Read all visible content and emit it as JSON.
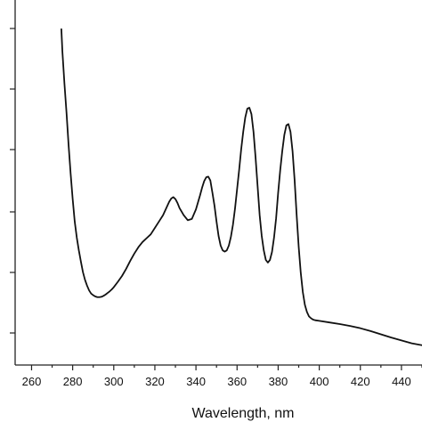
{
  "chart_data": {
    "type": "line",
    "title": "",
    "xlabel": "Wavelength, nm",
    "ylabel": "",
    "xlim": [
      252,
      450
    ],
    "ylim": [
      0,
      1
    ],
    "x_ticks": [
      260,
      280,
      300,
      320,
      340,
      360,
      380,
      400,
      420,
      440
    ],
    "grid": false,
    "legend": "none",
    "colors": {
      "line": "#111111",
      "axis": "#222222",
      "background": "#ffffff"
    },
    "series": [
      {
        "x": [
          274.5,
          275,
          276,
          277,
          278,
          279,
          280,
          281,
          282,
          283,
          284,
          285,
          286,
          287,
          288,
          289,
          290,
          291,
          292,
          293,
          294,
          295,
          296,
          297,
          298,
          299,
          300,
          302,
          304,
          306,
          308,
          310,
          312,
          314,
          316,
          318,
          320,
          322,
          324,
          326,
          327,
          328,
          329,
          330,
          331,
          332,
          334,
          336,
          338,
          340,
          342,
          343,
          344,
          345,
          346,
          347,
          348,
          349,
          350,
          351,
          352,
          353,
          354,
          355,
          356,
          357,
          358,
          359,
          360,
          361,
          362,
          363,
          364,
          365,
          366,
          367,
          368,
          369,
          370,
          371,
          372,
          373,
          374,
          375,
          376,
          377,
          378,
          379,
          380,
          381,
          382,
          383,
          384,
          385,
          386,
          387,
          388,
          389,
          390,
          391,
          392,
          393,
          394,
          395,
          396,
          397,
          398,
          400,
          405,
          410,
          415,
          420,
          425,
          430,
          435,
          440,
          445,
          450
        ],
        "y": [
          1.02,
          0.95,
          0.85,
          0.76,
          0.66,
          0.57,
          0.49,
          0.42,
          0.37,
          0.33,
          0.295,
          0.262,
          0.238,
          0.22,
          0.205,
          0.195,
          0.19,
          0.186,
          0.184,
          0.184,
          0.185,
          0.188,
          0.192,
          0.197,
          0.202,
          0.208,
          0.215,
          0.232,
          0.25,
          0.272,
          0.297,
          0.32,
          0.34,
          0.356,
          0.368,
          0.38,
          0.4,
          0.42,
          0.44,
          0.468,
          0.482,
          0.492,
          0.496,
          0.49,
          0.478,
          0.462,
          0.44,
          0.424,
          0.428,
          0.458,
          0.502,
          0.526,
          0.546,
          0.558,
          0.56,
          0.548,
          0.51,
          0.47,
          0.42,
          0.375,
          0.345,
          0.33,
          0.326,
          0.33,
          0.345,
          0.372,
          0.41,
          0.46,
          0.52,
          0.58,
          0.645,
          0.7,
          0.745,
          0.772,
          0.775,
          0.755,
          0.7,
          0.62,
          0.53,
          0.44,
          0.375,
          0.33,
          0.3,
          0.292,
          0.3,
          0.325,
          0.37,
          0.43,
          0.51,
          0.58,
          0.64,
          0.69,
          0.72,
          0.724,
          0.7,
          0.64,
          0.55,
          0.44,
          0.34,
          0.26,
          0.2,
          0.16,
          0.138,
          0.124,
          0.118,
          0.114,
          0.112,
          0.11,
          0.105,
          0.1,
          0.094,
          0.087,
          0.078,
          0.068,
          0.058,
          0.049,
          0.04,
          0.034
        ]
      }
    ]
  }
}
